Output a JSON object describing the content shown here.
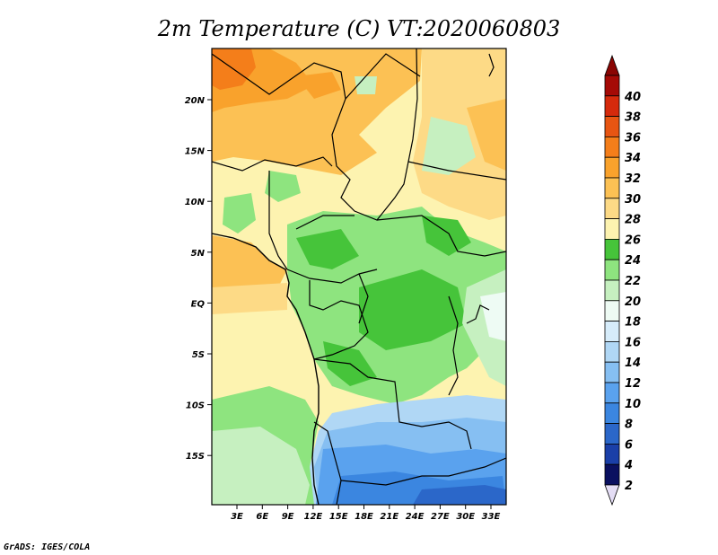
{
  "title": "2m Temperature (C) VT:2020060803",
  "credit": "GrADS: IGES/COLA",
  "lat_labels": [
    "20N",
    "15N",
    "10N",
    "5N",
    "EQ",
    "5S",
    "10S",
    "15S"
  ],
  "lon_labels": [
    "3E",
    "6E",
    "9E",
    "12E",
    "15E",
    "18E",
    "21E",
    "24E",
    "27E",
    "30E",
    "33E"
  ],
  "colorbar": {
    "levels": [
      "2",
      "4",
      "6",
      "8",
      "10",
      "12",
      "14",
      "16",
      "18",
      "20",
      "22",
      "24",
      "26",
      "28",
      "30",
      "32",
      "34",
      "36",
      "38",
      "40"
    ],
    "colors": [
      "#0a1060",
      "#1a3fa8",
      "#2b67c9",
      "#3b86e0",
      "#5aa2ee",
      "#86bff2",
      "#b0d7f5",
      "#d6ecfa",
      "#eefbf4",
      "#c6f0c0",
      "#8ee47f",
      "#46c43a",
      "#fdf3b0",
      "#fdda86",
      "#fcc154",
      "#f9a22c",
      "#f47e1a",
      "#e75512",
      "#d52a0c",
      "#a50a06"
    ]
  }
}
